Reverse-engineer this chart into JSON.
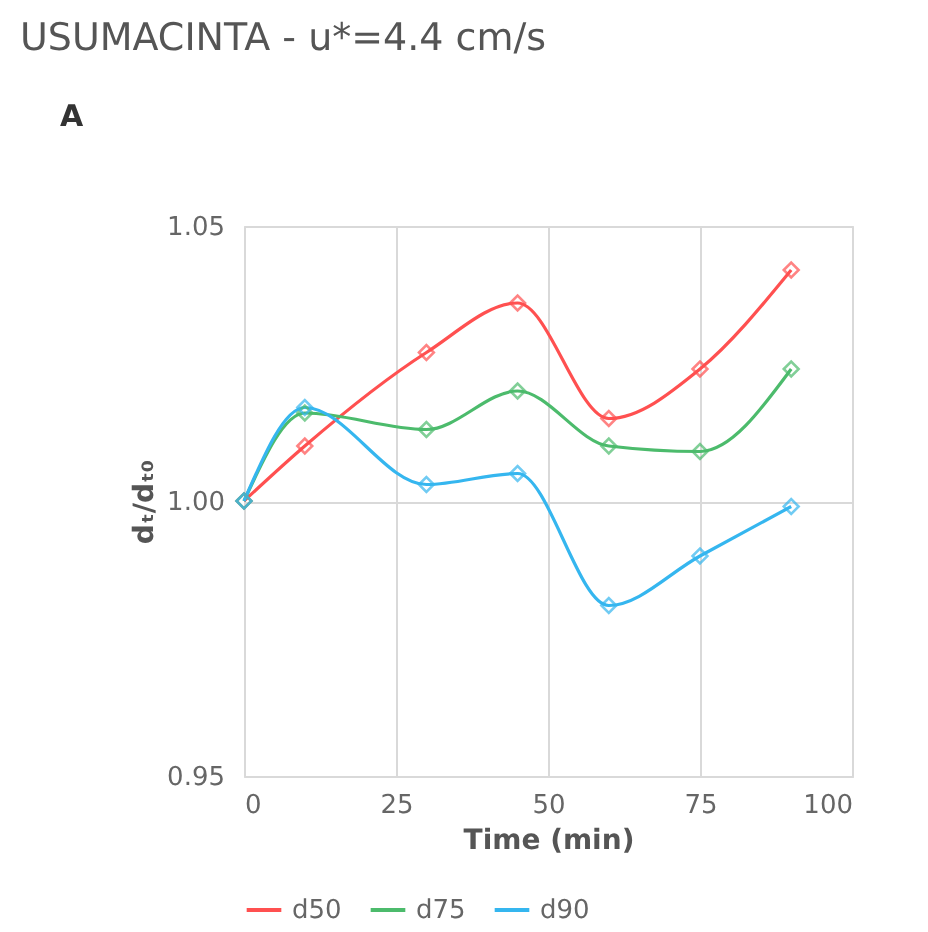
{
  "chart_data": {
    "type": "line",
    "title": "USUMACINTA - u*=4.4 cm/s",
    "annotations": [
      "A"
    ],
    "xlabel": "Time (min)",
    "ylabel": "dₜ/dₜ₀",
    "x": [
      0,
      10,
      30,
      45,
      60,
      75,
      90
    ],
    "series": [
      {
        "name": "d50",
        "color": "#ff5050",
        "values": [
          1.0,
          1.01,
          1.027,
          1.036,
          1.015,
          1.024,
          1.042
        ]
      },
      {
        "name": "d75",
        "color": "#4cbb6c",
        "values": [
          1.0,
          1.016,
          1.013,
          1.02,
          1.01,
          1.009,
          1.024
        ]
      },
      {
        "name": "d90",
        "color": "#35b6ef",
        "values": [
          1.0,
          1.017,
          1.003,
          1.005,
          0.981,
          0.99,
          0.999
        ]
      }
    ],
    "xlim": [
      0,
      100
    ],
    "xticks": [
      0,
      25,
      50,
      75,
      100
    ],
    "ylim": [
      0.95,
      1.05
    ],
    "yticks": [
      {
        "value": 0.95,
        "label": "0.95"
      },
      {
        "value": 1.0,
        "label": "1.00"
      },
      {
        "value": 1.05,
        "label": "1.05"
      }
    ],
    "grid": true,
    "legend": "bottom",
    "marker": "diamond",
    "line_style": "solid"
  }
}
